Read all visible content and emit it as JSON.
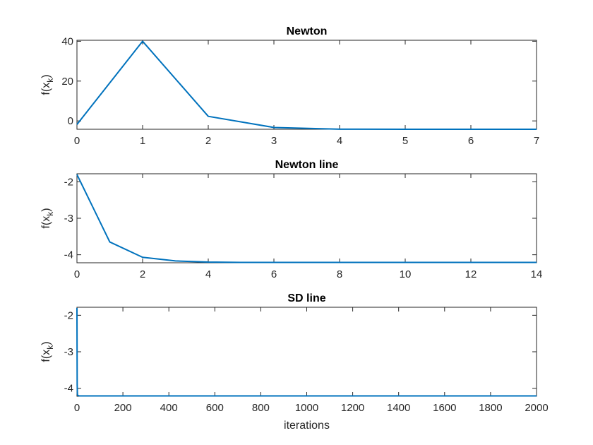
{
  "chart_data": [
    {
      "type": "line",
      "title": "Newton",
      "xlabel": "",
      "ylabel": "f(x_k)",
      "xlim": [
        0,
        7
      ],
      "ylim": [
        -4.2,
        40.5
      ],
      "xticks": [
        0,
        1,
        2,
        3,
        4,
        5,
        6,
        7
      ],
      "yticks": [
        0,
        20,
        40
      ],
      "series": [
        {
          "x": [
            0,
            1,
            2,
            3,
            4,
            5,
            6,
            7
          ],
          "y": [
            -1.8,
            40,
            2.3,
            -3.3,
            -4.15,
            -4.2,
            -4.2,
            -4.2
          ]
        }
      ]
    },
    {
      "type": "line",
      "title": "Newton line",
      "xlabel": "",
      "ylabel": "f(x_k)",
      "xlim": [
        0,
        14
      ],
      "ylim": [
        -4.22,
        -1.78
      ],
      "xticks": [
        0,
        2,
        4,
        6,
        8,
        10,
        12,
        14
      ],
      "yticks": [
        -2,
        -3,
        -4
      ],
      "series": [
        {
          "x": [
            0,
            1,
            2,
            3,
            4,
            5,
            6,
            7,
            8,
            9,
            10,
            11,
            12,
            13,
            14
          ],
          "y": [
            -1.8,
            -3.65,
            -4.07,
            -4.17,
            -4.2,
            -4.21,
            -4.21,
            -4.21,
            -4.21,
            -4.21,
            -4.21,
            -4.21,
            -4.21,
            -4.21,
            -4.21
          ]
        }
      ]
    },
    {
      "type": "line",
      "title": "SD line",
      "xlabel": "iterations",
      "ylabel": "f(x_k)",
      "xlim": [
        0,
        2000
      ],
      "ylim": [
        -4.22,
        -1.78
      ],
      "xticks": [
        0,
        200,
        400,
        600,
        800,
        1000,
        1200,
        1400,
        1600,
        1800,
        2000
      ],
      "yticks": [
        -2,
        -3,
        -4
      ],
      "series": [
        {
          "x": [
            0,
            1,
            2,
            3,
            5,
            10,
            50,
            2000
          ],
          "y": [
            -1.8,
            -3.9,
            -4.15,
            -4.19,
            -4.2,
            -4.21,
            -4.21,
            -4.21
          ]
        }
      ]
    }
  ],
  "colors": {
    "series": "#0072BD",
    "axes": "#262626"
  }
}
